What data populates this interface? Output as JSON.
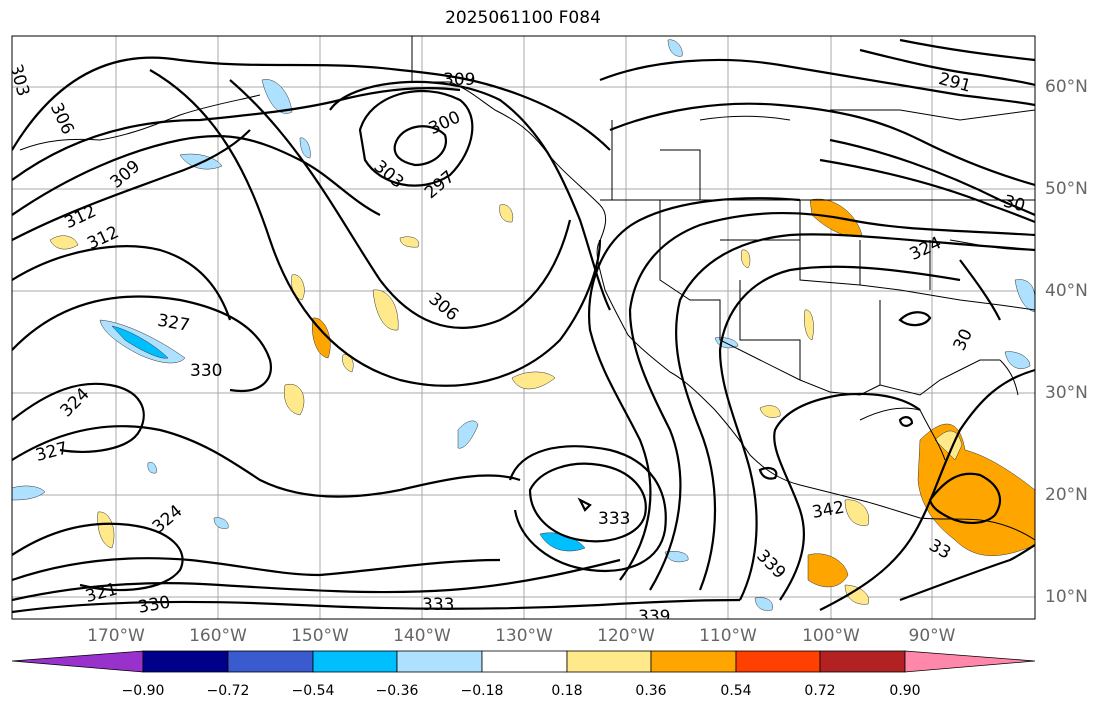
{
  "title": "2025061100 F084",
  "lat_labels": [
    "60°N",
    "50°N",
    "40°N",
    "30°N",
    "20°N",
    "10°N"
  ],
  "lon_labels": [
    "170°W",
    "160°W",
    "150°W",
    "140°W",
    "130°W",
    "120°W",
    "110°W",
    "100°W",
    "90°W"
  ],
  "colorbar": {
    "tick_labels": [
      "−0.90",
      "−0.72",
      "−0.54",
      "−0.36",
      "−0.18",
      "0.18",
      "0.36",
      "0.54",
      "0.72",
      "0.90"
    ],
    "colors": [
      "#9932cc",
      "#00008b",
      "#3a5bcf",
      "#00bfff",
      "#aee0ff",
      "#ffffff",
      "#ffe98a",
      "#ffa500",
      "#ff4000",
      "#b22222",
      "#ff88aa"
    ]
  },
  "contour_labels": [
    "303",
    "306",
    "309",
    "312",
    "312",
    "309",
    "300",
    "303",
    "297",
    "306",
    "327",
    "330",
    "324",
    "327",
    "324",
    "321",
    "330",
    "333",
    "333",
    "339",
    "339",
    "342",
    "291",
    "30",
    "324",
    "30",
    "33"
  ]
}
